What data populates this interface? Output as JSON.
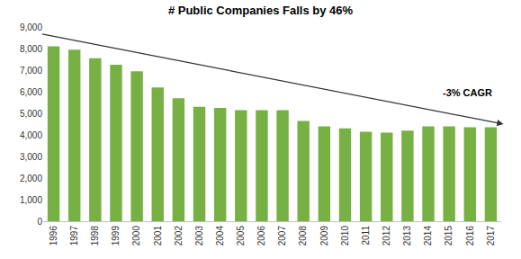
{
  "chart_data": {
    "type": "bar",
    "title": "# Public Companies Falls by 46%",
    "categories": [
      "1996",
      "1997",
      "1998",
      "1999",
      "2000",
      "2001",
      "2002",
      "2003",
      "2004",
      "2005",
      "2006",
      "2007",
      "2008",
      "2009",
      "2010",
      "2011",
      "2012",
      "2013",
      "2014",
      "2015",
      "2016",
      "2017"
    ],
    "values": [
      8100,
      7950,
      7550,
      7250,
      6950,
      6200,
      5700,
      5300,
      5250,
      5150,
      5150,
      5150,
      4650,
      4400,
      4300,
      4150,
      4100,
      4200,
      4400,
      4400,
      4350,
      4350
    ],
    "color": "#77b143",
    "ylim": [
      0,
      9000
    ],
    "yticks": [
      0,
      {
        "value": 1000,
        "label": "1,000"
      },
      {
        "value": 2000,
        "label": "2,000"
      },
      {
        "value": 3000,
        "label": "3,000"
      },
      {
        "value": 4000,
        "label": "4,000"
      },
      {
        "value": 5000,
        "label": "5,000"
      },
      {
        "value": 6000,
        "label": "6,000"
      },
      {
        "value": 7000,
        "label": "7,000"
      },
      {
        "value": 8000,
        "label": "8,000"
      },
      {
        "value": 9000,
        "label": "9,000"
      }
    ],
    "grid": false,
    "annotations": [
      "-3% CAGR"
    ]
  }
}
